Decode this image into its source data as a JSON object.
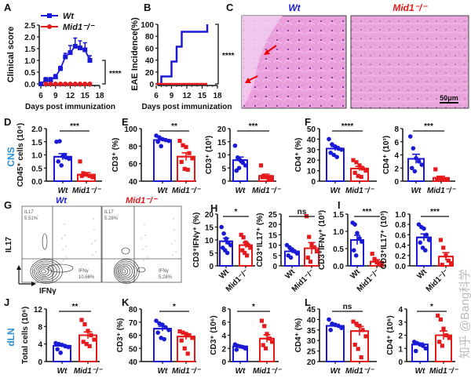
{
  "colors": {
    "wt": "#1a1ad6",
    "mid1": "#e41a1c",
    "row_label": "#2b8fd0",
    "tissue": "#e79ad8"
  },
  "groups": [
    "Wt",
    "Mid1⁻/⁻"
  ],
  "row_labels": {
    "cns": "CNS",
    "dln": "dLN"
  },
  "panel_labels": [
    "A",
    "B",
    "C",
    "D",
    "E",
    "F",
    "G",
    "H",
    "I",
    "J",
    "K",
    "L"
  ],
  "histology": {
    "titles": [
      "Wt",
      "Mid1⁻/⁻"
    ],
    "scale_bar": "50μm"
  },
  "flow": {
    "x_axis": "IFNγ",
    "y_axis": "IL17",
    "plots": [
      {
        "title": "Wt",
        "il17_label": "IL17",
        "il17_pct": "5.51%",
        "ifng_label": "IFNγ",
        "ifng_pct": "10.66%"
      },
      {
        "title": "Mid1⁻/⁻",
        "il17_label": "IL17",
        "il17_pct": "5.28%",
        "ifng_label": "IFNγ",
        "ifng_pct": "5.28%"
      }
    ]
  },
  "watermark": "知乎 @Bang科学",
  "chart_data": [
    {
      "panel": "A",
      "type": "line",
      "xlabel": "Days post immunization",
      "ylabel": "Clinical score",
      "xlim": [
        6,
        18
      ],
      "ylim": [
        0,
        2.5
      ],
      "xticks": [
        "6",
        "9",
        "12",
        "15",
        "18"
      ],
      "yticks": [
        "0.0",
        "0.5",
        "1.0",
        "1.5",
        "2.0",
        "2.5"
      ],
      "legend": "top-left",
      "significance": "****",
      "series": [
        {
          "name": "Wt",
          "marker": "square",
          "x": [
            6,
            7,
            8,
            9,
            10,
            11,
            12,
            13,
            14,
            15,
            16
          ],
          "y": [
            0,
            0.17,
            0.17,
            0.3,
            0.65,
            1.15,
            1.33,
            1.6,
            1.53,
            1.45,
            1.0
          ],
          "err": [
            0,
            0.1,
            0.1,
            0.1,
            0.1,
            0.15,
            0.3,
            0.35,
            0.3,
            0.3,
            0.2
          ]
        },
        {
          "name": "Mid1⁻/⁻",
          "marker": "circle",
          "x": [
            7,
            8,
            9,
            10,
            11,
            12,
            13,
            14,
            15,
            16
          ],
          "y": [
            0,
            0,
            0,
            0,
            0,
            0,
            0,
            0,
            0,
            0
          ]
        }
      ]
    },
    {
      "panel": "B",
      "type": "line",
      "xlabel": "Days post immunization",
      "ylabel": "EAE Incidence(%)",
      "xlim": [
        6,
        18
      ],
      "ylim": [
        0,
        100
      ],
      "xticks": [
        "6",
        "9",
        "12",
        "15",
        "18"
      ],
      "yticks": [
        "0",
        "20",
        "40",
        "60",
        "80",
        "100"
      ],
      "significance": "****",
      "step": true,
      "series": [
        {
          "name": "Wt",
          "x": [
            6,
            7,
            9,
            10,
            11,
            16
          ],
          "y": [
            0,
            12.5,
            37.5,
            62.5,
            87.5,
            100
          ]
        },
        {
          "name": "Mid1⁻/⁻",
          "x": [
            7,
            16
          ],
          "y": [
            0,
            0
          ]
        }
      ]
    },
    {
      "panel": "D",
      "type": "bar",
      "ylabel": "CD45⁺ cells (10⁴)",
      "ylim": [
        0,
        2
      ],
      "yticks": [
        "0.0",
        "0.5",
        "1.0",
        "1.5",
        "2.0"
      ],
      "significance": "***",
      "xtick_rotate": false,
      "series": [
        {
          "name": "Wt",
          "mean": 0.93,
          "points": [
            1.5,
            1.52,
            0.95,
            0.9,
            0.85,
            0.75,
            0.6,
            1.0
          ]
        },
        {
          "name": "Mid1⁻/⁻",
          "mean": 0.25,
          "points": [
            0.75,
            0.3,
            0.25,
            0.2,
            0.15,
            0.2,
            0.25
          ]
        }
      ]
    },
    {
      "panel": "E",
      "type": "bar",
      "ylabel": "CD3⁺ (%)",
      "ylim": [
        40,
        100
      ],
      "yticks": [
        "40",
        "60",
        "80",
        "100"
      ],
      "significance": "**",
      "series": [
        {
          "name": "Wt",
          "mean": 87,
          "points": [
            92,
            90,
            88,
            87,
            86,
            85,
            80
          ]
        },
        {
          "name": "Mid1⁻/⁻",
          "mean": 68,
          "points": [
            86,
            81,
            79,
            72,
            66,
            62,
            54,
            53
          ]
        }
      ]
    },
    {
      "panel": "",
      "type": "bar",
      "ylabel": "CD3⁺ (10³)",
      "ylim": [
        0,
        20
      ],
      "yticks": [
        "0",
        "5",
        "10",
        "15",
        "20"
      ],
      "significance": "***",
      "series": [
        {
          "name": "Wt",
          "mean": 8,
          "points": [
            13.5,
            9,
            8,
            7,
            6,
            4,
            5
          ]
        },
        {
          "name": "Mid1⁻/⁻",
          "mean": 2,
          "points": [
            6,
            2,
            1.5,
            1,
            1,
            1.5,
            2
          ]
        }
      ]
    },
    {
      "panel": "F",
      "type": "bar",
      "ylabel": "CD4⁺ (%)",
      "ylim": [
        0,
        50
      ],
      "yticks": [
        "0",
        "10",
        "20",
        "30",
        "40",
        "50"
      ],
      "significance": "****",
      "series": [
        {
          "name": "Wt",
          "mean": 31,
          "points": [
            40,
            35,
            33,
            31,
            30,
            27,
            25,
            23
          ]
        },
        {
          "name": "Mid1⁻/⁻",
          "mean": 12,
          "points": [
            20,
            18,
            15,
            12,
            10,
            8,
            5,
            4
          ]
        }
      ]
    },
    {
      "panel": "",
      "type": "bar",
      "ylabel": "CD4⁺ (10³)",
      "ylim": [
        0,
        8
      ],
      "yticks": [
        "0",
        "2",
        "4",
        "6",
        "8"
      ],
      "significance": "***",
      "series": [
        {
          "name": "Wt",
          "mean": 3.4,
          "points": [
            6.8,
            5,
            3.5,
            3,
            2.5,
            2,
            1.5
          ]
        },
        {
          "name": "Mid1⁻/⁻",
          "mean": 0.5,
          "points": [
            1.8,
            0.5,
            0.3,
            0.2,
            0.2,
            0.3
          ]
        }
      ]
    },
    {
      "panel": "H",
      "type": "bar",
      "ylabel": "CD3⁺IFNγ⁺ (%)",
      "ylim": [
        0,
        20
      ],
      "yticks": [
        "0",
        "5",
        "10",
        "15",
        "20"
      ],
      "significance": "*",
      "xtick_rotate": true,
      "series": [
        {
          "name": "Wt",
          "mean": 9.5,
          "points": [
            15,
            12.5,
            10.5,
            9,
            8,
            7,
            6,
            5
          ]
        },
        {
          "name": "Mid1⁻/⁻",
          "mean": 8,
          "points": [
            12,
            11,
            9,
            8,
            7,
            6,
            5,
            4
          ]
        }
      ]
    },
    {
      "panel": "",
      "type": "bar",
      "ylabel": "CD3⁺IL17⁺ (%)",
      "ylim": [
        0,
        25
      ],
      "yticks": [
        "0",
        "5",
        "10",
        "15",
        "20",
        "25"
      ],
      "significance": "ns",
      "xtick_rotate": true,
      "series": [
        {
          "name": "Wt",
          "mean": 7,
          "points": [
            10,
            9,
            8,
            7,
            6,
            5,
            4
          ]
        },
        {
          "name": "Mid1⁻/⁻",
          "mean": 8.5,
          "points": [
            24,
            14,
            10,
            9,
            7,
            4,
            2
          ]
        }
      ]
    },
    {
      "panel": "I",
      "type": "bar",
      "ylabel": "CD3⁺IFNγ⁺ (10³)",
      "ylim": [
        0,
        1.5
      ],
      "yticks": [
        "0.0",
        "0.5",
        "1.0",
        "1.5"
      ],
      "significance": "***",
      "xtick_rotate": true,
      "series": [
        {
          "name": "Wt",
          "mean": 0.75,
          "points": [
            1.25,
            1.2,
            0.95,
            0.8,
            0.7,
            0.45,
            0.3
          ]
        },
        {
          "name": "Mid1⁻/⁻",
          "mean": 0.12,
          "points": [
            0.35,
            0.2,
            0.1,
            0.05,
            0.02
          ]
        }
      ]
    },
    {
      "panel": "",
      "type": "bar",
      "ylabel": "CD3⁺IL17⁺ (10³)",
      "ylim": [
        0,
        1
      ],
      "yticks": [
        "0.0",
        "0.2",
        "0.4",
        "0.6",
        "0.8",
        "1.0"
      ],
      "significance": "***",
      "xtick_rotate": true,
      "series": [
        {
          "name": "Wt",
          "mean": 0.55,
          "points": [
            0.8,
            0.75,
            0.72,
            0.6,
            0.5,
            0.45,
            0.35,
            0.3
          ]
        },
        {
          "name": "Mid1⁻/⁻",
          "mean": 0.18,
          "points": [
            0.5,
            0.35,
            0.2,
            0.1,
            0.05,
            0.02
          ]
        }
      ]
    },
    {
      "panel": "J",
      "type": "bar",
      "ylabel": "Total cells (10⁶)",
      "ylim": [
        0,
        12
      ],
      "yticks": [
        "0",
        "4",
        "8",
        "12"
      ],
      "significance": "**",
      "series": [
        {
          "name": "Wt",
          "mean": 3.6,
          "points": [
            4.2,
            4,
            3.8,
            3.5,
            3.3,
            2.8,
            2
          ]
        },
        {
          "name": "Mid1⁻/⁻",
          "mean": 6,
          "points": [
            9.5,
            8.5,
            7,
            6,
            5,
            4.5,
            4,
            3.5
          ]
        }
      ]
    },
    {
      "panel": "K",
      "type": "bar",
      "ylabel": "CD3⁺ (%)",
      "ylim": [
        40,
        80
      ],
      "yticks": [
        "40",
        "50",
        "60",
        "70",
        "80"
      ],
      "significance": "*",
      "series": [
        {
          "name": "Wt",
          "mean": 65,
          "points": [
            71,
            69,
            68,
            66,
            64,
            62,
            58,
            57
          ]
        },
        {
          "name": "Mid1⁻/⁻",
          "mean": 59,
          "points": [
            63,
            62,
            61,
            60,
            58,
            56,
            50,
            46
          ]
        }
      ]
    },
    {
      "panel": "",
      "type": "bar",
      "ylabel": "CD3⁺ (10⁶)",
      "ylim": [
        0,
        8
      ],
      "yticks": [
        "0",
        "2",
        "4",
        "6",
        "8"
      ],
      "significance": "*",
      "series": [
        {
          "name": "Wt",
          "mean": 2.3,
          "points": [
            2.6,
            2.4,
            2.3,
            2.2,
            2,
            1.8
          ]
        },
        {
          "name": "Mid1⁻/⁻",
          "mean": 3.5,
          "points": [
            6.2,
            5.4,
            4.2,
            3.5,
            3,
            2.5,
            2
          ]
        }
      ]
    },
    {
      "panel": "L",
      "type": "bar",
      "ylabel": "CD4⁺ (%)",
      "ylim": [
        20,
        45
      ],
      "yticks": [
        "20",
        "25",
        "30",
        "35",
        "40",
        "45"
      ],
      "significance": "ns",
      "series": [
        {
          "name": "Wt",
          "mean": 37,
          "points": [
            40,
            38,
            37.5,
            37,
            36,
            35
          ]
        },
        {
          "name": "Mid1⁻/⁻",
          "mean": 34.5,
          "points": [
            39,
            38,
            37,
            35,
            32,
            28,
            26,
            22
          ]
        }
      ]
    },
    {
      "panel": "",
      "type": "bar",
      "ylabel": "CD4⁺ (10⁶)",
      "ylim": [
        0,
        4
      ],
      "yticks": [
        "0",
        "1",
        "2",
        "3",
        "4"
      ],
      "significance": "*",
      "series": [
        {
          "name": "Wt",
          "mean": 1.3,
          "points": [
            1.5,
            1.4,
            1.3,
            1.2,
            1,
            0.8
          ]
        },
        {
          "name": "Mid1⁻/⁻",
          "mean": 2,
          "points": [
            3.5,
            3.2,
            2.5,
            2,
            1.8,
            1.5,
            1.2
          ]
        }
      ]
    }
  ]
}
